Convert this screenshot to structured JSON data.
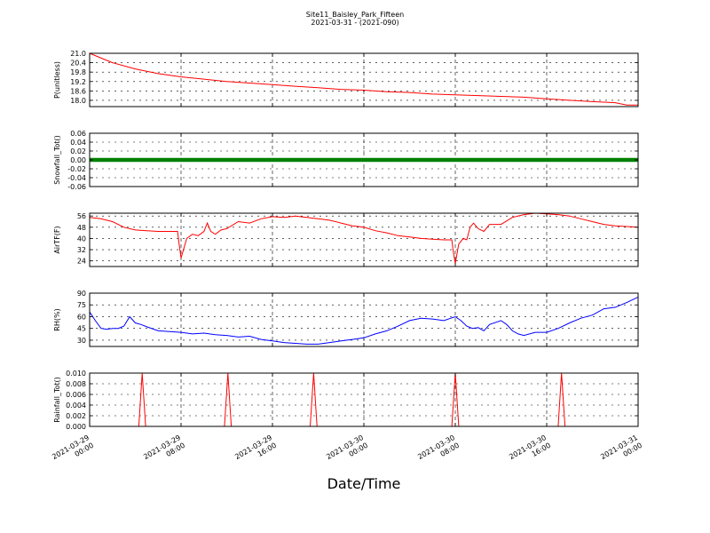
{
  "figure": {
    "title": "Site11_Baisley_Park_Fifteen",
    "subtitle": "2021-03-31 - (2021-090)",
    "xlabel": "Date/Time"
  },
  "chart_data": [
    {
      "type": "line",
      "ylabel": "P(unitless)",
      "ylim": [
        17.6,
        21.0
      ],
      "yticks": [
        "21.0",
        "20.4",
        "19.8",
        "19.2",
        "18.6",
        "18.0"
      ],
      "grid": true,
      "color": "#ff0000",
      "x": [
        0,
        2,
        4,
        6,
        8,
        10,
        12,
        14,
        16,
        18,
        20,
        22,
        24,
        26,
        28,
        30,
        32,
        34,
        36,
        38,
        40,
        42,
        44,
        46,
        47,
        48
      ],
      "values": [
        21.0,
        20.4,
        20.0,
        19.7,
        19.5,
        19.35,
        19.2,
        19.1,
        19.0,
        18.9,
        18.8,
        18.7,
        18.65,
        18.55,
        18.5,
        18.4,
        18.35,
        18.3,
        18.25,
        18.2,
        18.1,
        18.0,
        17.92,
        17.85,
        17.7,
        17.7
      ]
    },
    {
      "type": "scatter",
      "ylabel": "Snowfall_Tot()",
      "ylim": [
        -0.06,
        0.06
      ],
      "yticks": [
        "0.06",
        "0.04",
        "0.02",
        "0.00",
        "-0.02",
        "-0.04",
        "-0.06"
      ],
      "grid": true,
      "color": "#008000",
      "constant_value": 0.0
    },
    {
      "type": "line",
      "ylabel": "AirTF(F)",
      "ylim": [
        20,
        58
      ],
      "yticks": [
        "56",
        "48",
        "40",
        "32",
        "24"
      ],
      "grid": true,
      "color": "#ff0000",
      "x": [
        0,
        1,
        2,
        3,
        4,
        5,
        6,
        7,
        7.7,
        7.8,
        8.0,
        8.5,
        9.0,
        9.5,
        10.0,
        10.3,
        10.6,
        11.0,
        11.5,
        12,
        13,
        14,
        15,
        16,
        17,
        18,
        19,
        20,
        21,
        22,
        23,
        24,
        25,
        26,
        27,
        28,
        29,
        30,
        31,
        31.7,
        31.8,
        32.0,
        32.3,
        32.7,
        33.0,
        33.3,
        33.6,
        34.0,
        34.5,
        35,
        36,
        37,
        38,
        39,
        40,
        41,
        42,
        43,
        44,
        45,
        46,
        47,
        48
      ],
      "values": [
        55,
        54,
        52,
        48,
        46,
        45.5,
        45,
        45,
        45,
        38,
        26,
        40,
        43,
        42,
        45,
        51,
        45,
        43,
        46,
        47,
        52,
        51,
        54,
        55.5,
        55,
        56,
        55,
        54,
        53,
        51,
        49,
        48,
        45.5,
        44,
        42,
        41,
        40,
        39.5,
        39,
        39,
        32,
        22,
        36,
        40,
        39,
        48,
        51,
        47,
        45,
        50,
        50,
        55,
        57,
        58,
        57.5,
        57,
        56,
        54,
        52,
        50,
        49,
        48.5,
        48
      ]
    },
    {
      "type": "line",
      "ylabel": "RH(%)",
      "ylim": [
        22,
        90
      ],
      "yticks": [
        "90",
        "75",
        "60",
        "45",
        "30"
      ],
      "grid": true,
      "color": "#0000ff",
      "x": [
        0,
        0.5,
        1,
        1.5,
        2,
        2.5,
        3,
        3.5,
        4,
        4.5,
        5,
        6,
        7,
        8,
        9,
        10,
        11,
        12,
        13,
        14,
        15,
        16,
        17,
        18,
        19,
        20,
        21,
        22,
        23,
        24,
        25,
        26,
        27,
        28,
        29,
        30,
        31,
        32,
        32.5,
        33,
        33.5,
        34,
        34.5,
        35,
        36,
        36.5,
        37,
        37.5,
        38,
        39,
        40,
        41,
        42,
        43,
        44,
        45,
        46,
        47,
        48
      ],
      "values": [
        66,
        55,
        45,
        44,
        45,
        45,
        48,
        60,
        52,
        50,
        47,
        42,
        41,
        40,
        38,
        39,
        37,
        36,
        34,
        35,
        31,
        29,
        27,
        26,
        25,
        25,
        27,
        29,
        31,
        33,
        38,
        42,
        48,
        55,
        58,
        57,
        55,
        60,
        55,
        48,
        45,
        46,
        42,
        50,
        55,
        50,
        42,
        38,
        36,
        40,
        40,
        45,
        52,
        58,
        62,
        70,
        72,
        78,
        85
      ]
    },
    {
      "type": "line",
      "ylabel": "Rainfall_Tot()",
      "ylim": [
        0.0,
        0.01
      ],
      "yticks": [
        "0.010",
        "0.008",
        "0.006",
        "0.004",
        "0.002",
        "0.000"
      ],
      "grid": true,
      "color": "#ff0000",
      "x": [
        0,
        4.3,
        4.6,
        4.9,
        11.8,
        12.1,
        12.4,
        19.3,
        19.6,
        19.9,
        31.7,
        32.0,
        32.3,
        41.0,
        41.3,
        41.6,
        48
      ],
      "values": [
        0,
        0,
        0.01,
        0,
        0,
        0.01,
        0,
        0,
        0.01,
        0,
        0,
        0.01,
        0,
        0,
        0.01,
        0,
        0
      ]
    }
  ],
  "x_axis": {
    "range_hours": [
      0,
      48
    ],
    "ticks": [
      {
        "hour": 0,
        "line1": "2021-03-29",
        "line2": "00:00"
      },
      {
        "hour": 8,
        "line1": "2021-03-29",
        "line2": "08:00"
      },
      {
        "hour": 16,
        "line1": "2021-03-29",
        "line2": "16:00"
      },
      {
        "hour": 24,
        "line1": "2021-03-30",
        "line2": "00:00"
      },
      {
        "hour": 32,
        "line1": "2021-03-30",
        "line2": "08:00"
      },
      {
        "hour": 40,
        "line1": "2021-03-30",
        "line2": "16:00"
      },
      {
        "hour": 48,
        "line1": "2021-03-31",
        "line2": "00:00"
      }
    ]
  }
}
